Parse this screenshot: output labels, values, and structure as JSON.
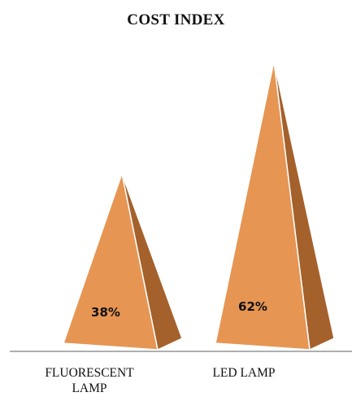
{
  "chart_data": {
    "type": "bar",
    "title": "COST INDEX",
    "xlabel": "",
    "ylabel": "",
    "categories": [
      "FLUORESCENT\nLAMP",
      "LED LAMP"
    ],
    "values": [
      38,
      62
    ],
    "data_labels": [
      "38%",
      "62%"
    ],
    "ylim": [
      0,
      100
    ],
    "grid": false,
    "legend": "none",
    "colors": {
      "front": "#E69553",
      "side": "#A5612B",
      "edge": "#ffffff",
      "baseline": "#7f7f7f"
    },
    "shape": "pyramid"
  }
}
